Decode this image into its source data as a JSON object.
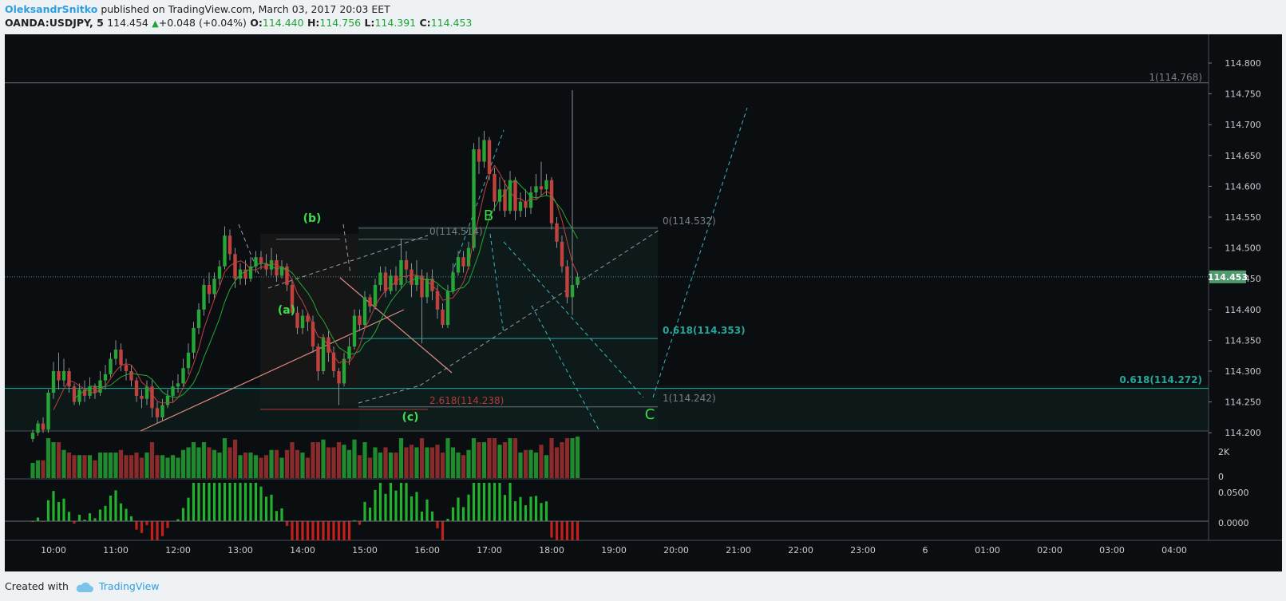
{
  "header": {
    "author": "OleksandrSnitko",
    "published": "published on TradingView.com, March 03, 2017 20:03 EET",
    "symbol": "OANDA:USDJPY, 5",
    "last": "114.454",
    "change": "+0.048 (+0.04%)",
    "o_label": "O:",
    "o": "114.440",
    "h_label": "H:",
    "h": "114.756",
    "l_label": "L:",
    "l": "114.391",
    "c_label": "C:",
    "c": "114.453"
  },
  "footer": {
    "created_with": "Created with",
    "brand": "TradingView"
  },
  "colors": {
    "up": "#26a637",
    "down": "#c0423f",
    "wick": "#8a8f93",
    "fib": "#26a69a",
    "annot": "#3ddc4a",
    "cyan": "#3bb5c9"
  },
  "chart_data": {
    "type": "candlestick",
    "x_ticks": [
      "10:00",
      "11:00",
      "12:00",
      "13:00",
      "14:00",
      "15:00",
      "16:00",
      "17:00",
      "18:00",
      "19:00",
      "20:00",
      "21:00",
      "22:00",
      "23:00",
      "6",
      "01:00",
      "02:00",
      "03:00",
      "04:00"
    ],
    "y_ticks": [
      "114.800",
      "114.750",
      "114.700",
      "114.650",
      "114.600",
      "114.550",
      "114.500",
      "114.450",
      "114.400",
      "114.350",
      "114.300",
      "114.250",
      "114.200"
    ],
    "ylim": [
      114.19,
      114.83
    ],
    "current_price": "114.453",
    "candles": [
      [
        114.19,
        114.2,
        114.185,
        114.205
      ],
      [
        114.2,
        114.215,
        114.195,
        114.22
      ],
      [
        114.215,
        114.205,
        114.2,
        114.225
      ],
      [
        114.205,
        114.265,
        114.2,
        114.27
      ],
      [
        114.265,
        114.3,
        114.255,
        114.315
      ],
      [
        114.3,
        114.285,
        114.27,
        114.33
      ],
      [
        114.285,
        114.3,
        114.275,
        114.32
      ],
      [
        114.3,
        114.275,
        114.265,
        114.305
      ],
      [
        114.275,
        114.25,
        114.245,
        114.28
      ],
      [
        114.25,
        114.27,
        114.245,
        114.28
      ],
      [
        114.27,
        114.26,
        114.25,
        114.285
      ],
      [
        114.26,
        114.275,
        114.255,
        114.29
      ],
      [
        114.275,
        114.265,
        114.255,
        114.28
      ],
      [
        114.265,
        114.285,
        114.26,
        114.3
      ],
      [
        114.285,
        114.295,
        114.27,
        114.31
      ],
      [
        114.295,
        114.32,
        114.29,
        114.33
      ],
      [
        114.32,
        114.335,
        114.31,
        114.35
      ],
      [
        114.335,
        114.31,
        114.3,
        114.345
      ],
      [
        114.31,
        114.3,
        114.285,
        114.32
      ],
      [
        114.3,
        114.285,
        114.275,
        114.31
      ],
      [
        114.285,
        114.26,
        114.25,
        114.29
      ],
      [
        114.26,
        114.255,
        114.24,
        114.27
      ],
      [
        114.255,
        114.275,
        114.245,
        114.285
      ],
      [
        114.275,
        114.24,
        114.225,
        114.285
      ],
      [
        114.24,
        114.225,
        114.215,
        114.25
      ],
      [
        114.225,
        114.245,
        114.22,
        114.255
      ],
      [
        114.245,
        114.26,
        114.24,
        114.27
      ],
      [
        114.26,
        114.275,
        114.25,
        114.285
      ],
      [
        114.275,
        114.28,
        114.265,
        114.295
      ],
      [
        114.28,
        114.305,
        114.275,
        114.32
      ],
      [
        114.305,
        114.33,
        114.295,
        114.345
      ],
      [
        114.33,
        114.37,
        114.32,
        114.38
      ],
      [
        114.37,
        114.4,
        114.36,
        114.41
      ],
      [
        114.4,
        114.44,
        114.39,
        114.45
      ],
      [
        114.44,
        114.425,
        114.41,
        114.46
      ],
      [
        114.425,
        114.45,
        114.415,
        114.46
      ],
      [
        114.45,
        114.47,
        114.44,
        114.48
      ],
      [
        114.47,
        114.52,
        114.465,
        114.535
      ],
      [
        114.52,
        114.49,
        114.48,
        114.53
      ],
      [
        114.49,
        114.45,
        114.435,
        114.5
      ],
      [
        114.45,
        114.465,
        114.44,
        114.475
      ],
      [
        114.465,
        114.45,
        114.44,
        114.48
      ],
      [
        114.45,
        114.47,
        114.445,
        114.485
      ],
      [
        114.47,
        114.485,
        114.46,
        114.495
      ],
      [
        114.485,
        114.475,
        114.465,
        114.495
      ],
      [
        114.475,
        114.465,
        114.455,
        114.49
      ],
      [
        114.465,
        114.48,
        114.455,
        114.5
      ],
      [
        114.48,
        114.455,
        114.445,
        114.49
      ],
      [
        114.455,
        114.47,
        114.45,
        114.48
      ],
      [
        114.47,
        114.44,
        114.43,
        114.475
      ],
      [
        114.44,
        114.395,
        114.39,
        114.45
      ],
      [
        114.395,
        114.37,
        114.36,
        114.405
      ],
      [
        114.37,
        114.39,
        114.36,
        114.4
      ],
      [
        114.39,
        114.38,
        114.365,
        114.395
      ],
      [
        114.38,
        114.34,
        114.33,
        114.39
      ],
      [
        114.34,
        114.3,
        114.285,
        114.345
      ],
      [
        114.3,
        114.355,
        114.295,
        114.36
      ],
      [
        114.355,
        114.33,
        114.315,
        114.365
      ],
      [
        114.33,
        114.3,
        114.29,
        114.34
      ],
      [
        114.3,
        114.28,
        114.245,
        114.305
      ],
      [
        114.28,
        114.32,
        114.275,
        114.33
      ],
      [
        114.32,
        114.34,
        114.31,
        114.355
      ],
      [
        114.34,
        114.39,
        114.335,
        114.4
      ],
      [
        114.39,
        114.375,
        114.365,
        114.4
      ],
      [
        114.375,
        114.42,
        114.37,
        114.43
      ],
      [
        114.42,
        114.405,
        114.395,
        114.425
      ],
      [
        114.405,
        114.44,
        114.4,
        114.45
      ],
      [
        114.44,
        114.46,
        114.43,
        114.47
      ],
      [
        114.46,
        114.43,
        114.42,
        114.47
      ],
      [
        114.43,
        114.455,
        114.425,
        114.465
      ],
      [
        114.455,
        114.44,
        114.43,
        114.47
      ],
      [
        114.44,
        114.48,
        114.435,
        114.515
      ],
      [
        114.48,
        114.465,
        114.445,
        114.495
      ],
      [
        114.465,
        114.44,
        114.42,
        114.475
      ],
      [
        114.44,
        114.455,
        114.43,
        114.48
      ],
      [
        114.455,
        114.42,
        114.345,
        114.465
      ],
      [
        114.42,
        114.45,
        114.41,
        114.46
      ],
      [
        114.45,
        114.43,
        114.415,
        114.465
      ],
      [
        114.43,
        114.4,
        114.385,
        114.44
      ],
      [
        114.4,
        114.375,
        114.37,
        114.41
      ],
      [
        114.375,
        114.43,
        114.37,
        114.44
      ],
      [
        114.43,
        114.46,
        114.425,
        114.475
      ],
      [
        114.46,
        114.485,
        114.455,
        114.495
      ],
      [
        114.485,
        114.47,
        114.46,
        114.495
      ],
      [
        114.47,
        114.5,
        114.465,
        114.51
      ],
      [
        114.5,
        114.66,
        114.495,
        114.67
      ],
      [
        114.66,
        114.64,
        114.62,
        114.68
      ],
      [
        114.64,
        114.675,
        114.63,
        114.69
      ],
      [
        114.675,
        114.62,
        114.61,
        114.68
      ],
      [
        114.62,
        114.575,
        114.56,
        114.63
      ],
      [
        114.575,
        114.595,
        114.56,
        114.615
      ],
      [
        114.595,
        114.56,
        114.55,
        114.61
      ],
      [
        114.56,
        114.61,
        114.555,
        114.625
      ],
      [
        114.61,
        114.56,
        114.545,
        114.615
      ],
      [
        114.56,
        114.575,
        114.55,
        114.59
      ],
      [
        114.575,
        114.565,
        114.55,
        114.595
      ],
      [
        114.565,
        114.59,
        114.555,
        114.6
      ],
      [
        114.59,
        114.6,
        114.58,
        114.62
      ],
      [
        114.6,
        114.595,
        114.585,
        114.64
      ],
      [
        114.595,
        114.61,
        114.585,
        114.62
      ],
      [
        114.61,
        114.54,
        114.53,
        114.615
      ],
      [
        114.54,
        114.51,
        114.5,
        114.55
      ],
      [
        114.51,
        114.47,
        114.46,
        114.52
      ],
      [
        114.47,
        114.42,
        114.41,
        114.48
      ],
      [
        114.42,
        114.44,
        114.391,
        114.756
      ],
      [
        114.44,
        114.453,
        114.435,
        114.46
      ]
    ],
    "volume_axis": [
      "2K",
      "0"
    ],
    "oscillator_axis": [
      "0.0500",
      "0.0000"
    ],
    "annotations": {
      "wave_b_small": "(b)",
      "wave_a_small": "(a)",
      "wave_c_small": "(c)",
      "wave_B": "B",
      "wave_C": "C",
      "fib_top": "1(114.768)",
      "fib_0514": "0(114.514)",
      "fib_2618": "2.618(114.238)",
      "fib_0532": "0(114.532)",
      "fib_0618a": "0.618(114.353)",
      "fib_1242": "1(114.242)",
      "fib_0618b": "0.618(114.272)"
    }
  }
}
